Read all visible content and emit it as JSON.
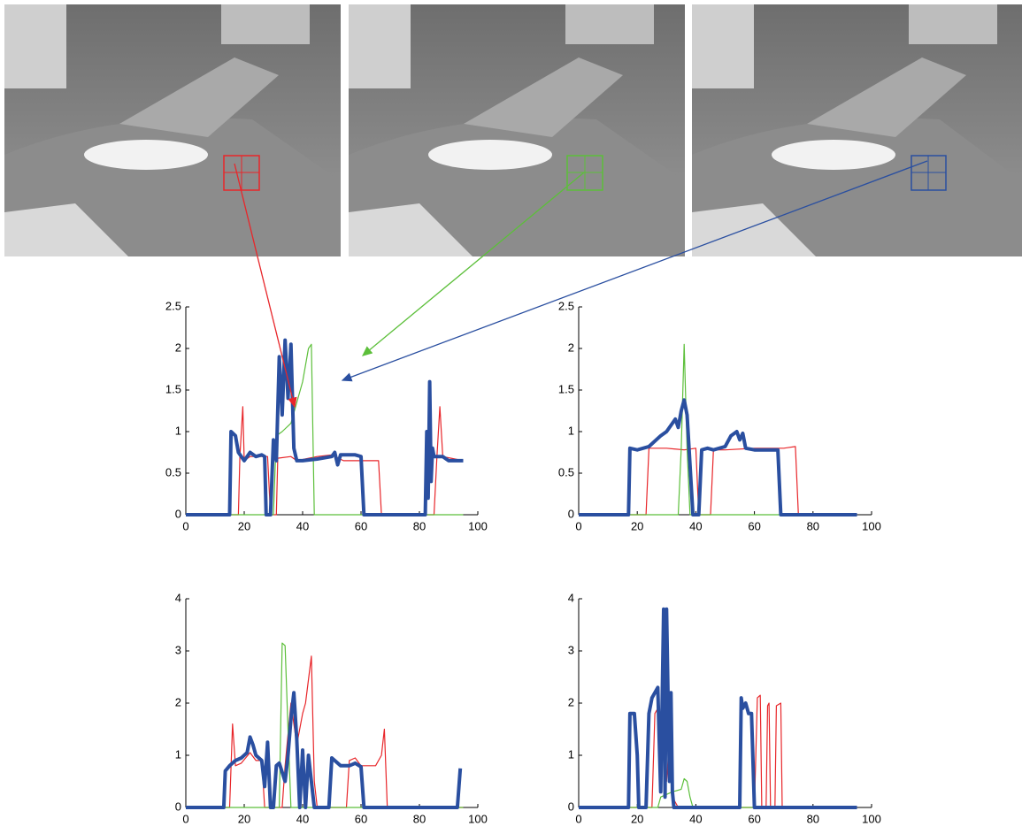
{
  "chart_data": [
    {
      "type": "line",
      "xlim": [
        0,
        100
      ],
      "ylim": [
        0,
        2.5
      ],
      "xticks": [
        0,
        20,
        40,
        60,
        80,
        100
      ],
      "yticks": [
        0,
        0.5,
        1,
        1.5,
        2,
        2.5
      ],
      "series": [
        {
          "color": "#e8262a",
          "linewidth": 1.2,
          "x": [
            0,
            18,
            18.5,
            19.5,
            20,
            22,
            24,
            28,
            29,
            31,
            31.5,
            36,
            38,
            45,
            50,
            54,
            58,
            62,
            66,
            67,
            85,
            86,
            87,
            88,
            95
          ],
          "values": [
            0,
            0,
            0.7,
            1.3,
            0.65,
            0.7,
            0.7,
            0.7,
            0,
            0,
            0.68,
            0.7,
            0.65,
            0.7,
            0.72,
            0.65,
            0.65,
            0.65,
            0.65,
            0,
            0,
            0.7,
            1.3,
            0.7,
            0.65
          ]
        },
        {
          "color": "#5cbf3a",
          "linewidth": 1.2,
          "x": [
            0,
            30,
            31,
            33,
            36,
            40,
            42,
            43,
            44,
            95
          ],
          "values": [
            0,
            0,
            0.95,
            1.0,
            1.1,
            1.6,
            2.0,
            2.05,
            0,
            0
          ]
        },
        {
          "color": "#2a4fa0",
          "linewidth": 4,
          "x": [
            0,
            15,
            15.5,
            17,
            18,
            20,
            22,
            24,
            26,
            27,
            27.5,
            29,
            30,
            31,
            32,
            33,
            34,
            35,
            36,
            37,
            38,
            40,
            45,
            50,
            51,
            52,
            53,
            56,
            58,
            60,
            61,
            82,
            82.5,
            83,
            83.5,
            84,
            84.5,
            85,
            88,
            90,
            95
          ],
          "values": [
            0,
            0,
            1.0,
            0.95,
            0.75,
            0.65,
            0.75,
            0.7,
            0.72,
            0.7,
            0,
            0,
            0.9,
            0.65,
            1.9,
            1.2,
            2.1,
            1.4,
            2.05,
            0.8,
            0.65,
            0.65,
            0.67,
            0.7,
            0.75,
            0.6,
            0.72,
            0.72,
            0.72,
            0.7,
            0,
            0,
            1.0,
            0.2,
            1.6,
            0.4,
            0.8,
            0.7,
            0.7,
            0.65,
            0.65
          ]
        }
      ]
    },
    {
      "type": "line",
      "xlim": [
        0,
        100
      ],
      "ylim": [
        0,
        2.5
      ],
      "xticks": [
        0,
        20,
        40,
        60,
        80,
        100
      ],
      "yticks": [
        0,
        0.5,
        1,
        1.5,
        2,
        2.5
      ],
      "series": [
        {
          "color": "#e8262a",
          "linewidth": 1.2,
          "x": [
            0,
            23,
            24,
            30,
            36,
            40,
            41,
            45,
            46,
            50,
            60,
            70,
            74,
            75,
            95
          ],
          "values": [
            0,
            0,
            0.8,
            0.8,
            0.78,
            0.8,
            0,
            0,
            0.78,
            0.78,
            0.8,
            0.8,
            0.82,
            0,
            0
          ]
        },
        {
          "color": "#5cbf3a",
          "linewidth": 1.2,
          "x": [
            0,
            34,
            35,
            36,
            37,
            38,
            95
          ],
          "values": [
            0,
            0,
            0.8,
            2.05,
            0.8,
            0,
            0
          ]
        },
        {
          "color": "#2a4fa0",
          "linewidth": 4,
          "x": [
            0,
            17,
            17.5,
            20,
            24,
            28,
            30,
            32,
            33,
            34,
            35,
            36,
            37,
            38,
            39,
            41,
            42,
            44,
            46,
            50,
            52,
            54,
            55,
            56,
            57,
            60,
            65,
            68,
            69,
            95
          ],
          "values": [
            0,
            0,
            0.8,
            0.78,
            0.82,
            0.95,
            1.0,
            1.1,
            1.15,
            1.05,
            1.25,
            1.38,
            1.2,
            0.6,
            0,
            0,
            0.78,
            0.8,
            0.78,
            0.82,
            0.95,
            1.0,
            0.9,
            0.98,
            0.8,
            0.78,
            0.78,
            0.78,
            0,
            0
          ]
        }
      ]
    },
    {
      "type": "line",
      "xlim": [
        0,
        100
      ],
      "ylim": [
        0,
        4
      ],
      "xticks": [
        0,
        20,
        40,
        60,
        80,
        100
      ],
      "yticks": [
        0,
        1,
        2,
        3,
        4
      ],
      "series": [
        {
          "color": "#e8262a",
          "linewidth": 1.2,
          "x": [
            0,
            15,
            16,
            17,
            19,
            22,
            24,
            26,
            27,
            33,
            34,
            36,
            38,
            40,
            41,
            43,
            44,
            45,
            55,
            56,
            58,
            60,
            65,
            67,
            68,
            69,
            95
          ],
          "values": [
            0,
            0,
            1.6,
            0.8,
            0.85,
            1.05,
            0.9,
            0.9,
            0,
            0,
            0.8,
            2.0,
            1.2,
            1.8,
            2.0,
            2.9,
            0.5,
            0,
            0,
            0.9,
            0.95,
            0.8,
            0.8,
            1.0,
            1.5,
            0,
            0
          ]
        },
        {
          "color": "#5cbf3a",
          "linewidth": 1.2,
          "x": [
            0,
            32,
            33,
            34,
            35,
            36,
            95
          ],
          "values": [
            0,
            0,
            3.15,
            3.1,
            1.5,
            0,
            0
          ]
        },
        {
          "color": "#2a4fa0",
          "linewidth": 4,
          "x": [
            0,
            13,
            13.5,
            15,
            17,
            19,
            21,
            22,
            23,
            24,
            26,
            27,
            28,
            29,
            30,
            31,
            32,
            34,
            35,
            36,
            37,
            38,
            39,
            40,
            41,
            42,
            43,
            44,
            49,
            50,
            53,
            56,
            58,
            60,
            61,
            93,
            94
          ],
          "values": [
            0,
            0,
            0.7,
            0.8,
            0.9,
            0.95,
            1.05,
            1.35,
            1.2,
            1.0,
            0.9,
            0.4,
            1.25,
            0,
            0,
            0.8,
            0.85,
            0.5,
            1.0,
            1.7,
            2.2,
            1.3,
            0,
            1.1,
            0,
            1.0,
            0.5,
            0,
            0,
            0.95,
            0.8,
            0.8,
            0.85,
            0.78,
            0,
            0,
            0.75
          ]
        }
      ]
    },
    {
      "type": "line",
      "xlim": [
        0,
        100
      ],
      "ylim": [
        0,
        4
      ],
      "xticks": [
        0,
        20,
        40,
        60,
        80,
        100
      ],
      "yticks": [
        0,
        1,
        2,
        3,
        4
      ],
      "series": [
        {
          "color": "#e8262a",
          "linewidth": 1.2,
          "x": [
            0,
            25,
            26,
            27,
            28,
            29,
            30,
            31,
            32,
            34,
            60,
            61,
            62,
            62.5,
            64,
            64.5,
            65,
            65.5,
            67,
            67.5,
            69,
            69.5,
            95
          ],
          "values": [
            0,
            0,
            1.8,
            1.9,
            1.8,
            1.5,
            0.5,
            1.3,
            0.2,
            0,
            0,
            2.1,
            2.15,
            0,
            0,
            1.95,
            2.0,
            0,
            0,
            1.95,
            2.0,
            0,
            0
          ]
        },
        {
          "color": "#5cbf3a",
          "linewidth": 1.2,
          "x": [
            0,
            27,
            28,
            32,
            35,
            36,
            37,
            38,
            39,
            95
          ],
          "values": [
            0,
            0,
            0.2,
            0.3,
            0.35,
            0.55,
            0.5,
            0.2,
            0,
            0
          ]
        },
        {
          "color": "#2a4fa0",
          "linewidth": 4,
          "x": [
            0,
            17,
            17.5,
            19,
            20,
            20.5,
            23,
            24,
            25,
            27,
            27.5,
            28,
            29,
            29.5,
            30,
            31,
            31.5,
            32,
            32.5,
            55,
            55.5,
            56,
            57,
            58,
            59,
            60,
            95
          ],
          "values": [
            0,
            0,
            1.8,
            1.8,
            1.0,
            0,
            0,
            1.8,
            2.1,
            2.3,
            1.3,
            0.3,
            3.8,
            0.2,
            3.8,
            0.5,
            2.2,
            0.3,
            0,
            0,
            2.1,
            1.9,
            2.0,
            1.8,
            1.8,
            0,
            0
          ]
        }
      ]
    }
  ]
}
